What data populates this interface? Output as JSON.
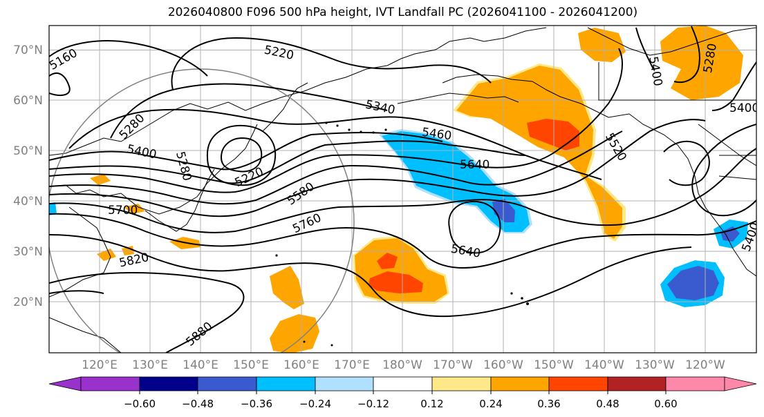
{
  "title": "2026040800 F096 500 hPa height, IVT Landfall PC (2026041100 - 2026041200)",
  "lat_labels": [
    "70°N",
    "60°N",
    "50°N",
    "40°N",
    "30°N",
    "20°N"
  ],
  "lon_labels": [
    "120°E",
    "130°E",
    "140°E",
    "150°E",
    "160°E",
    "170°E",
    "180°W",
    "170°W",
    "160°W",
    "150°W",
    "140°W",
    "130°W",
    "120°W"
  ],
  "contour_labels": [
    "5160",
    "5220",
    "5280",
    "5280",
    "5340",
    "5400",
    "5220",
    "5460",
    "5580",
    "5640",
    "5520",
    "5400",
    "5760",
    "5640",
    "5700",
    "5820",
    "5880",
    "5280",
    "5400",
    "5400"
  ],
  "colorbar": {
    "tick_labels": [
      "−0.60",
      "−0.48",
      "−0.36",
      "−0.24",
      "−0.12",
      "0.12",
      "0.24",
      "0.36",
      "0.48",
      "0.60"
    ],
    "colors": [
      "#9932CC",
      "#00008B",
      "#3A5BD0",
      "#00BFFF",
      "#B0E0FF",
      "#FFFFFF",
      "#FFE888",
      "#FFA500",
      "#FF4500",
      "#B22222",
      "#FF88AA"
    ]
  },
  "colors": {
    "positive_orange": "#FFA500",
    "positive_red": "#FF4500",
    "positive_light": "#FFE888",
    "negative_cyan": "#00BFFF",
    "negative_blue": "#3A5BD0",
    "contour": "#000000",
    "grid": "#b0b0b0"
  }
}
